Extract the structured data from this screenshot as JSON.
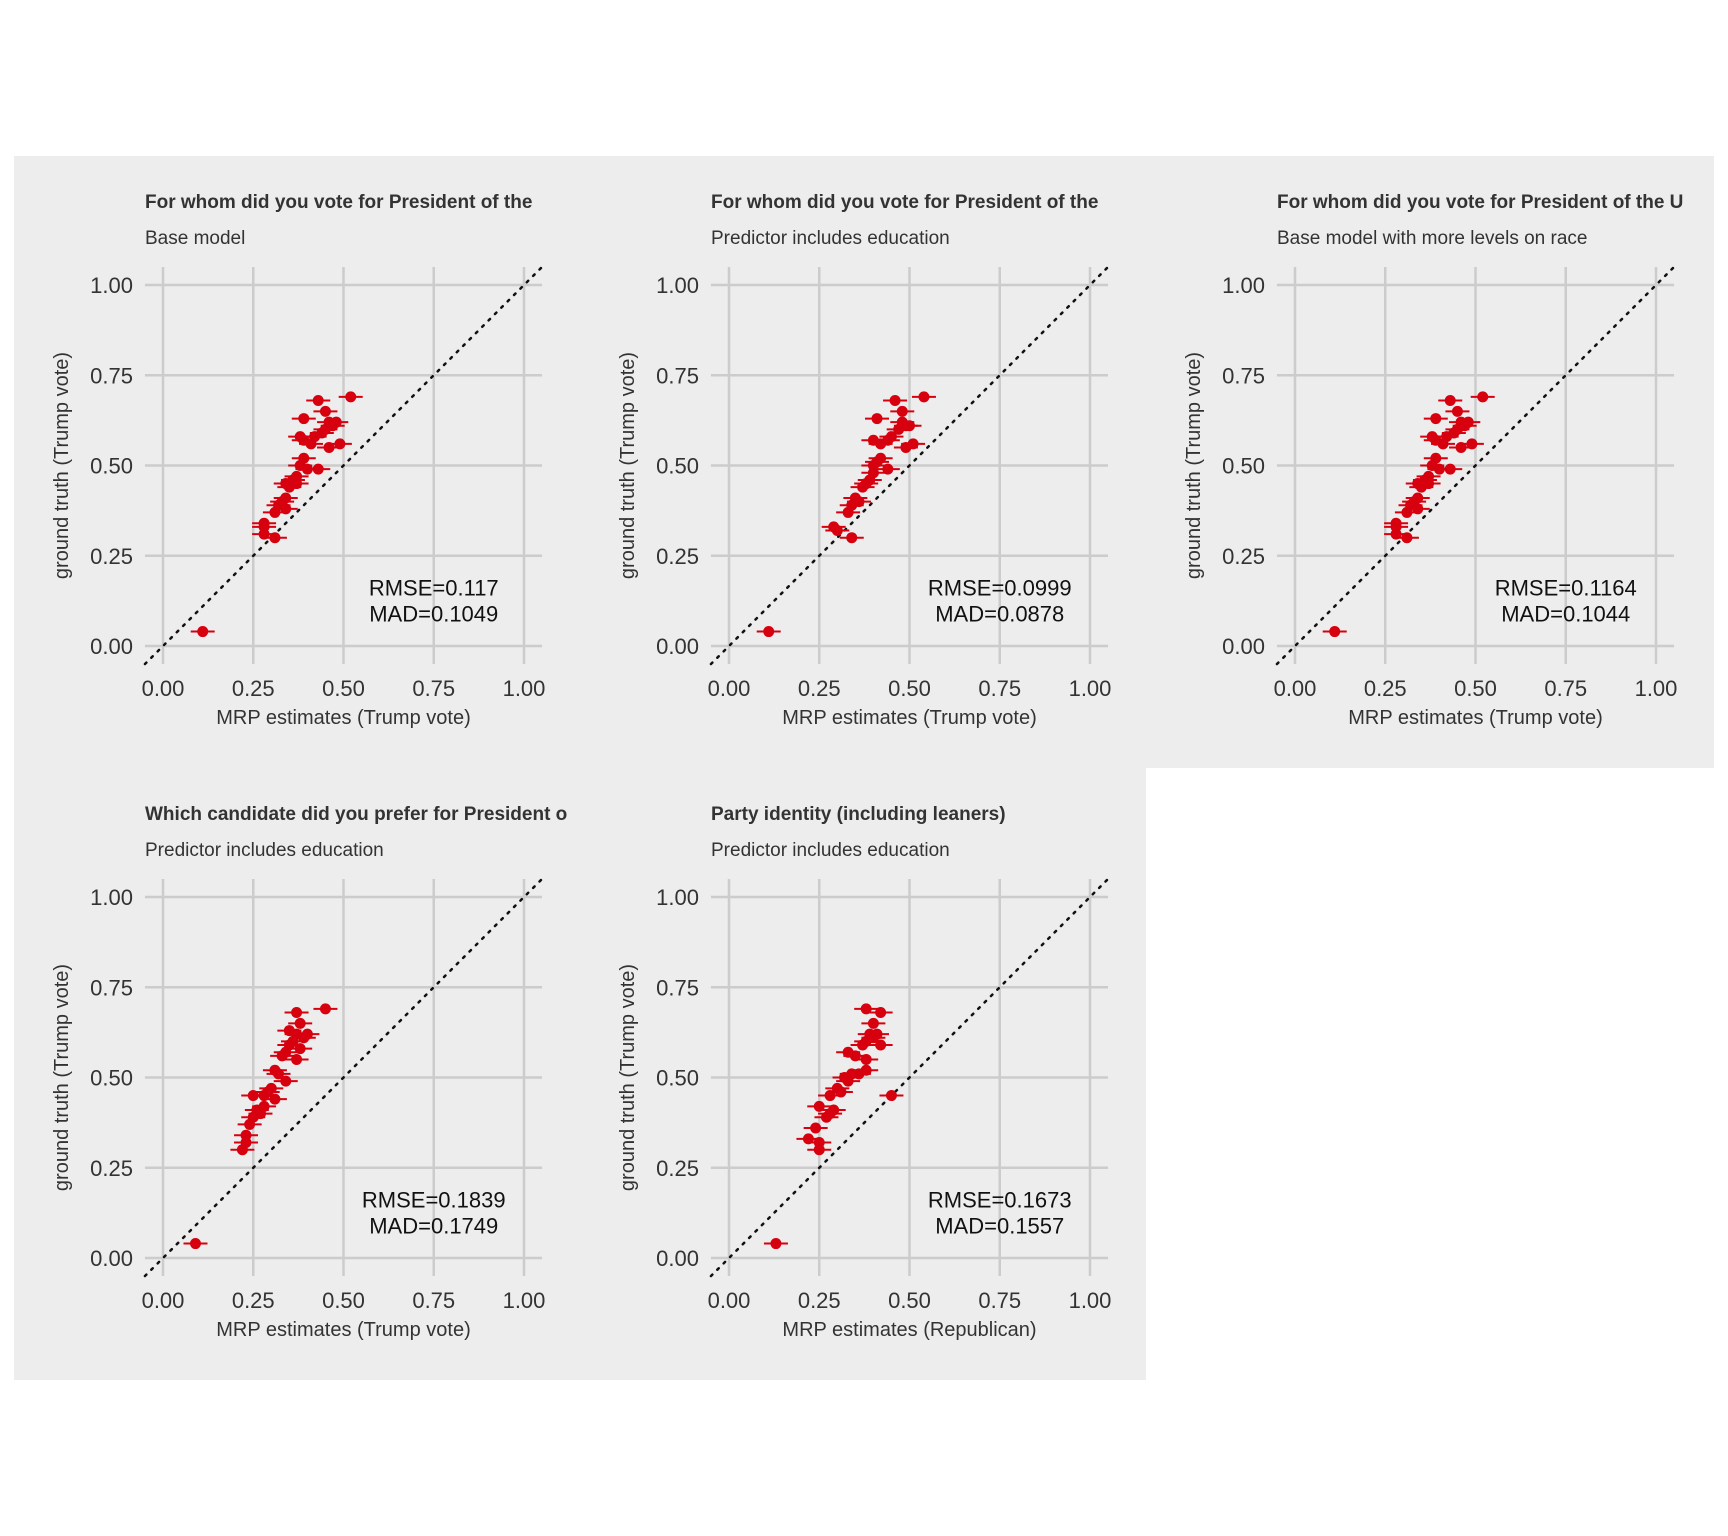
{
  "chart_data": [
    {
      "type": "scatter",
      "title": "For whom did you vote for President of the",
      "subtitle": "Base model",
      "xlabel": "MRP estimates (Trump vote)",
      "ylabel": "ground truth (Trump vote)",
      "xlim": [
        0,
        1
      ],
      "ylim": [
        0,
        1
      ],
      "xticks": [
        "0.00",
        "0.25",
        "0.50",
        "0.75",
        "1.00"
      ],
      "yticks": [
        "0.00",
        "0.25",
        "0.50",
        "0.75",
        "1.00"
      ],
      "grid": true,
      "reference_line": "y = x (dotted)",
      "stats": [
        "RMSE=0.117",
        "MAD=0.1049"
      ],
      "point_color": "#d7000f",
      "points": [
        {
          "x": 0.11,
          "y": 0.04
        },
        {
          "x": 0.28,
          "y": 0.33
        },
        {
          "x": 0.28,
          "y": 0.31
        },
        {
          "x": 0.28,
          "y": 0.34
        },
        {
          "x": 0.31,
          "y": 0.3
        },
        {
          "x": 0.31,
          "y": 0.37
        },
        {
          "x": 0.32,
          "y": 0.39
        },
        {
          "x": 0.33,
          "y": 0.4
        },
        {
          "x": 0.34,
          "y": 0.41
        },
        {
          "x": 0.34,
          "y": 0.38
        },
        {
          "x": 0.34,
          "y": 0.45
        },
        {
          "x": 0.35,
          "y": 0.44
        },
        {
          "x": 0.36,
          "y": 0.46
        },
        {
          "x": 0.37,
          "y": 0.45
        },
        {
          "x": 0.37,
          "y": 0.47
        },
        {
          "x": 0.38,
          "y": 0.5
        },
        {
          "x": 0.39,
          "y": 0.52
        },
        {
          "x": 0.4,
          "y": 0.49
        },
        {
          "x": 0.39,
          "y": 0.57
        },
        {
          "x": 0.41,
          "y": 0.56
        },
        {
          "x": 0.42,
          "y": 0.58
        },
        {
          "x": 0.43,
          "y": 0.49
        },
        {
          "x": 0.44,
          "y": 0.59
        },
        {
          "x": 0.45,
          "y": 0.6
        },
        {
          "x": 0.46,
          "y": 0.62
        },
        {
          "x": 0.47,
          "y": 0.61
        },
        {
          "x": 0.46,
          "y": 0.55
        },
        {
          "x": 0.49,
          "y": 0.56
        },
        {
          "x": 0.39,
          "y": 0.63
        },
        {
          "x": 0.45,
          "y": 0.65
        },
        {
          "x": 0.43,
          "y": 0.68
        },
        {
          "x": 0.52,
          "y": 0.69
        },
        {
          "x": 0.38,
          "y": 0.58
        },
        {
          "x": 0.48,
          "y": 0.62
        }
      ]
    },
    {
      "type": "scatter",
      "title": "For whom did you vote for President of the",
      "subtitle": "Predictor includes education",
      "xlabel": "MRP estimates (Trump vote)",
      "ylabel": "ground truth (Trump vote)",
      "xlim": [
        0,
        1
      ],
      "ylim": [
        0,
        1
      ],
      "xticks": [
        "0.00",
        "0.25",
        "0.50",
        "0.75",
        "1.00"
      ],
      "yticks": [
        "0.00",
        "0.25",
        "0.50",
        "0.75",
        "1.00"
      ],
      "grid": true,
      "reference_line": "y = x (dotted)",
      "stats": [
        "RMSE=0.0999",
        "MAD=0.0878"
      ],
      "point_color": "#d7000f",
      "points": [
        {
          "x": 0.11,
          "y": 0.04
        },
        {
          "x": 0.29,
          "y": 0.33
        },
        {
          "x": 0.3,
          "y": 0.32
        },
        {
          "x": 0.34,
          "y": 0.3
        },
        {
          "x": 0.33,
          "y": 0.37
        },
        {
          "x": 0.34,
          "y": 0.39
        },
        {
          "x": 0.35,
          "y": 0.41
        },
        {
          "x": 0.36,
          "y": 0.4
        },
        {
          "x": 0.37,
          "y": 0.44
        },
        {
          "x": 0.38,
          "y": 0.45
        },
        {
          "x": 0.39,
          "y": 0.46
        },
        {
          "x": 0.4,
          "y": 0.48
        },
        {
          "x": 0.4,
          "y": 0.5
        },
        {
          "x": 0.41,
          "y": 0.51
        },
        {
          "x": 0.42,
          "y": 0.52
        },
        {
          "x": 0.44,
          "y": 0.49
        },
        {
          "x": 0.42,
          "y": 0.56
        },
        {
          "x": 0.44,
          "y": 0.57
        },
        {
          "x": 0.45,
          "y": 0.58
        },
        {
          "x": 0.47,
          "y": 0.6
        },
        {
          "x": 0.48,
          "y": 0.62
        },
        {
          "x": 0.49,
          "y": 0.61
        },
        {
          "x": 0.49,
          "y": 0.55
        },
        {
          "x": 0.51,
          "y": 0.56
        },
        {
          "x": 0.41,
          "y": 0.63
        },
        {
          "x": 0.48,
          "y": 0.65
        },
        {
          "x": 0.46,
          "y": 0.68
        },
        {
          "x": 0.54,
          "y": 0.69
        },
        {
          "x": 0.4,
          "y": 0.57
        },
        {
          "x": 0.5,
          "y": 0.61
        }
      ]
    },
    {
      "type": "scatter",
      "title": "For whom did you vote for President of the U",
      "subtitle": "Base model with more levels on race",
      "xlabel": "MRP estimates (Trump vote)",
      "ylabel": "ground truth (Trump vote)",
      "xlim": [
        0,
        1
      ],
      "ylim": [
        0,
        1
      ],
      "xticks": [
        "0.00",
        "0.25",
        "0.50",
        "0.75",
        "1.00"
      ],
      "yticks": [
        "0.00",
        "0.25",
        "0.50",
        "0.75",
        "1.00"
      ],
      "grid": true,
      "reference_line": "y = x (dotted)",
      "stats": [
        "RMSE=0.1164",
        "MAD=0.1044"
      ],
      "point_color": "#d7000f",
      "points": [
        {
          "x": 0.11,
          "y": 0.04
        },
        {
          "x": 0.28,
          "y": 0.33
        },
        {
          "x": 0.28,
          "y": 0.31
        },
        {
          "x": 0.28,
          "y": 0.34
        },
        {
          "x": 0.31,
          "y": 0.3
        },
        {
          "x": 0.31,
          "y": 0.37
        },
        {
          "x": 0.32,
          "y": 0.39
        },
        {
          "x": 0.33,
          "y": 0.4
        },
        {
          "x": 0.34,
          "y": 0.41
        },
        {
          "x": 0.34,
          "y": 0.38
        },
        {
          "x": 0.34,
          "y": 0.45
        },
        {
          "x": 0.35,
          "y": 0.44
        },
        {
          "x": 0.36,
          "y": 0.46
        },
        {
          "x": 0.37,
          "y": 0.45
        },
        {
          "x": 0.37,
          "y": 0.47
        },
        {
          "x": 0.38,
          "y": 0.5
        },
        {
          "x": 0.39,
          "y": 0.52
        },
        {
          "x": 0.4,
          "y": 0.49
        },
        {
          "x": 0.39,
          "y": 0.57
        },
        {
          "x": 0.41,
          "y": 0.56
        },
        {
          "x": 0.42,
          "y": 0.58
        },
        {
          "x": 0.43,
          "y": 0.49
        },
        {
          "x": 0.44,
          "y": 0.59
        },
        {
          "x": 0.45,
          "y": 0.6
        },
        {
          "x": 0.46,
          "y": 0.62
        },
        {
          "x": 0.47,
          "y": 0.61
        },
        {
          "x": 0.46,
          "y": 0.55
        },
        {
          "x": 0.49,
          "y": 0.56
        },
        {
          "x": 0.39,
          "y": 0.63
        },
        {
          "x": 0.45,
          "y": 0.65
        },
        {
          "x": 0.43,
          "y": 0.68
        },
        {
          "x": 0.52,
          "y": 0.69
        },
        {
          "x": 0.38,
          "y": 0.58
        },
        {
          "x": 0.48,
          "y": 0.62
        }
      ]
    },
    {
      "type": "scatter",
      "title": "Which candidate did you prefer for President o",
      "subtitle": "Predictor includes education",
      "xlabel": "MRP estimates (Trump vote)",
      "ylabel": "ground truth (Trump vote)",
      "xlim": [
        0,
        1
      ],
      "ylim": [
        0,
        1
      ],
      "xticks": [
        "0.00",
        "0.25",
        "0.50",
        "0.75",
        "1.00"
      ],
      "yticks": [
        "0.00",
        "0.25",
        "0.50",
        "0.75",
        "1.00"
      ],
      "grid": true,
      "reference_line": "y = x (dotted)",
      "stats": [
        "RMSE=0.1839",
        "MAD=0.1749"
      ],
      "point_color": "#d7000f",
      "points": [
        {
          "x": 0.09,
          "y": 0.04
        },
        {
          "x": 0.22,
          "y": 0.3
        },
        {
          "x": 0.23,
          "y": 0.32
        },
        {
          "x": 0.23,
          "y": 0.34
        },
        {
          "x": 0.24,
          "y": 0.37
        },
        {
          "x": 0.25,
          "y": 0.39
        },
        {
          "x": 0.26,
          "y": 0.41
        },
        {
          "x": 0.27,
          "y": 0.4
        },
        {
          "x": 0.28,
          "y": 0.42
        },
        {
          "x": 0.28,
          "y": 0.45
        },
        {
          "x": 0.29,
          "y": 0.46
        },
        {
          "x": 0.3,
          "y": 0.47
        },
        {
          "x": 0.31,
          "y": 0.44
        },
        {
          "x": 0.31,
          "y": 0.52
        },
        {
          "x": 0.32,
          "y": 0.51
        },
        {
          "x": 0.34,
          "y": 0.49
        },
        {
          "x": 0.33,
          "y": 0.56
        },
        {
          "x": 0.34,
          "y": 0.57
        },
        {
          "x": 0.35,
          "y": 0.59
        },
        {
          "x": 0.36,
          "y": 0.6
        },
        {
          "x": 0.37,
          "y": 0.62
        },
        {
          "x": 0.38,
          "y": 0.58
        },
        {
          "x": 0.37,
          "y": 0.55
        },
        {
          "x": 0.4,
          "y": 0.62
        },
        {
          "x": 0.35,
          "y": 0.63
        },
        {
          "x": 0.38,
          "y": 0.65
        },
        {
          "x": 0.37,
          "y": 0.68
        },
        {
          "x": 0.45,
          "y": 0.69
        },
        {
          "x": 0.25,
          "y": 0.45
        },
        {
          "x": 0.39,
          "y": 0.61
        }
      ]
    },
    {
      "type": "scatter",
      "title": "Party identity (including leaners)",
      "subtitle": "Predictor includes education",
      "xlabel": "MRP estimates (Republican)",
      "ylabel": "ground truth (Trump vote)",
      "xlim": [
        0,
        1
      ],
      "ylim": [
        0,
        1
      ],
      "xticks": [
        "0.00",
        "0.25",
        "0.50",
        "0.75",
        "1.00"
      ],
      "yticks": [
        "0.00",
        "0.25",
        "0.50",
        "0.75",
        "1.00"
      ],
      "grid": true,
      "reference_line": "y = x (dotted)",
      "stats": [
        "RMSE=0.1673",
        "MAD=0.1557"
      ],
      "point_color": "#d7000f",
      "points": [
        {
          "x": 0.13,
          "y": 0.04
        },
        {
          "x": 0.22,
          "y": 0.33
        },
        {
          "x": 0.25,
          "y": 0.3
        },
        {
          "x": 0.25,
          "y": 0.32
        },
        {
          "x": 0.24,
          "y": 0.36
        },
        {
          "x": 0.25,
          "y": 0.42
        },
        {
          "x": 0.27,
          "y": 0.39
        },
        {
          "x": 0.28,
          "y": 0.4
        },
        {
          "x": 0.29,
          "y": 0.41
        },
        {
          "x": 0.28,
          "y": 0.45
        },
        {
          "x": 0.3,
          "y": 0.47
        },
        {
          "x": 0.31,
          "y": 0.46
        },
        {
          "x": 0.32,
          "y": 0.5
        },
        {
          "x": 0.33,
          "y": 0.49
        },
        {
          "x": 0.34,
          "y": 0.51
        },
        {
          "x": 0.36,
          "y": 0.51
        },
        {
          "x": 0.33,
          "y": 0.57
        },
        {
          "x": 0.35,
          "y": 0.56
        },
        {
          "x": 0.37,
          "y": 0.59
        },
        {
          "x": 0.38,
          "y": 0.6
        },
        {
          "x": 0.39,
          "y": 0.62
        },
        {
          "x": 0.4,
          "y": 0.61
        },
        {
          "x": 0.38,
          "y": 0.55
        },
        {
          "x": 0.42,
          "y": 0.59
        },
        {
          "x": 0.38,
          "y": 0.69
        },
        {
          "x": 0.42,
          "y": 0.68
        },
        {
          "x": 0.4,
          "y": 0.65
        },
        {
          "x": 0.45,
          "y": 0.45
        },
        {
          "x": 0.38,
          "y": 0.52
        },
        {
          "x": 0.41,
          "y": 0.62
        }
      ]
    }
  ]
}
